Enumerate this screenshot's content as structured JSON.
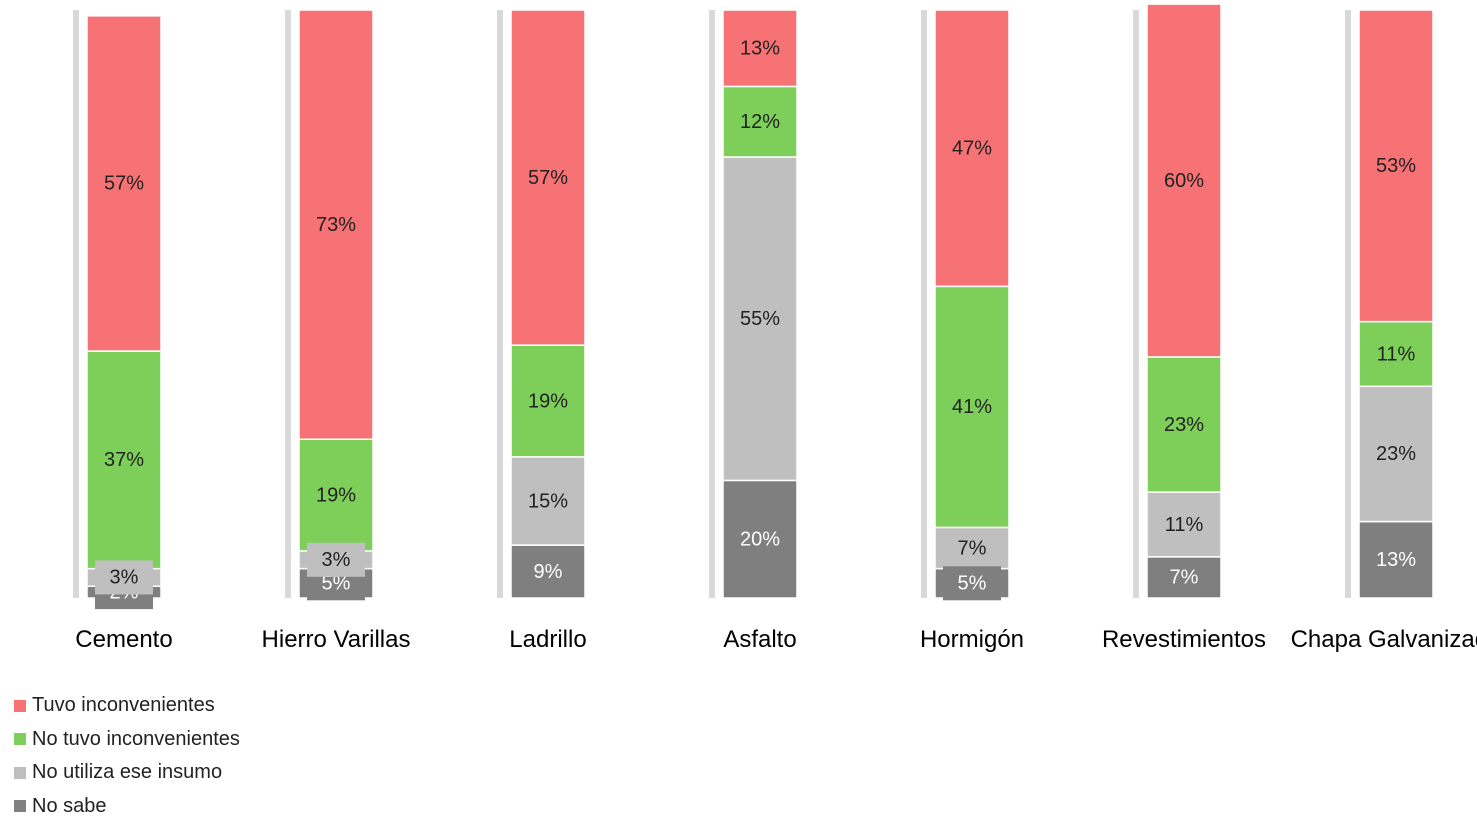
{
  "chart_data": {
    "type": "stacked_bar",
    "categories": [
      "Cemento",
      "Hierro Varillas",
      "Ladrillo",
      "Asfalto",
      "Hormigón",
      "Revestimientos",
      "Chapa Galvanizada"
    ],
    "ylim": [
      0,
      100
    ],
    "series": [
      {
        "name": "No sabe",
        "color": "#7f7f7f",
        "values": [
          2,
          5,
          9,
          20,
          5,
          7,
          13
        ],
        "value_labels": [
          "2%",
          "5%",
          "9%",
          "20%",
          "5%",
          "7%",
          "13%"
        ]
      },
      {
        "name": "No utiliza ese insumo",
        "color": "#bfbfbf",
        "values": [
          3,
          3,
          15,
          55,
          7,
          11,
          23
        ],
        "value_labels": [
          "3%",
          "3%",
          "15%",
          "55%",
          "7%",
          "11%",
          "23%"
        ]
      },
      {
        "name": "No tuvo inconvenientes",
        "color": "#7ecf5a",
        "values": [
          37,
          19,
          19,
          12,
          41,
          23,
          11
        ],
        "value_labels": [
          "37%",
          "19%",
          "19%",
          "12%",
          "41%",
          "23%",
          "11%"
        ]
      },
      {
        "name": "Tuvo inconvenientes",
        "color": "#f77274",
        "values": [
          57,
          73,
          57,
          13,
          47,
          60,
          53
        ],
        "value_labels": [
          "57%",
          "73%",
          "57%",
          "13%",
          "47%",
          "60%",
          "53%"
        ]
      }
    ],
    "legend": "bottom-left"
  }
}
